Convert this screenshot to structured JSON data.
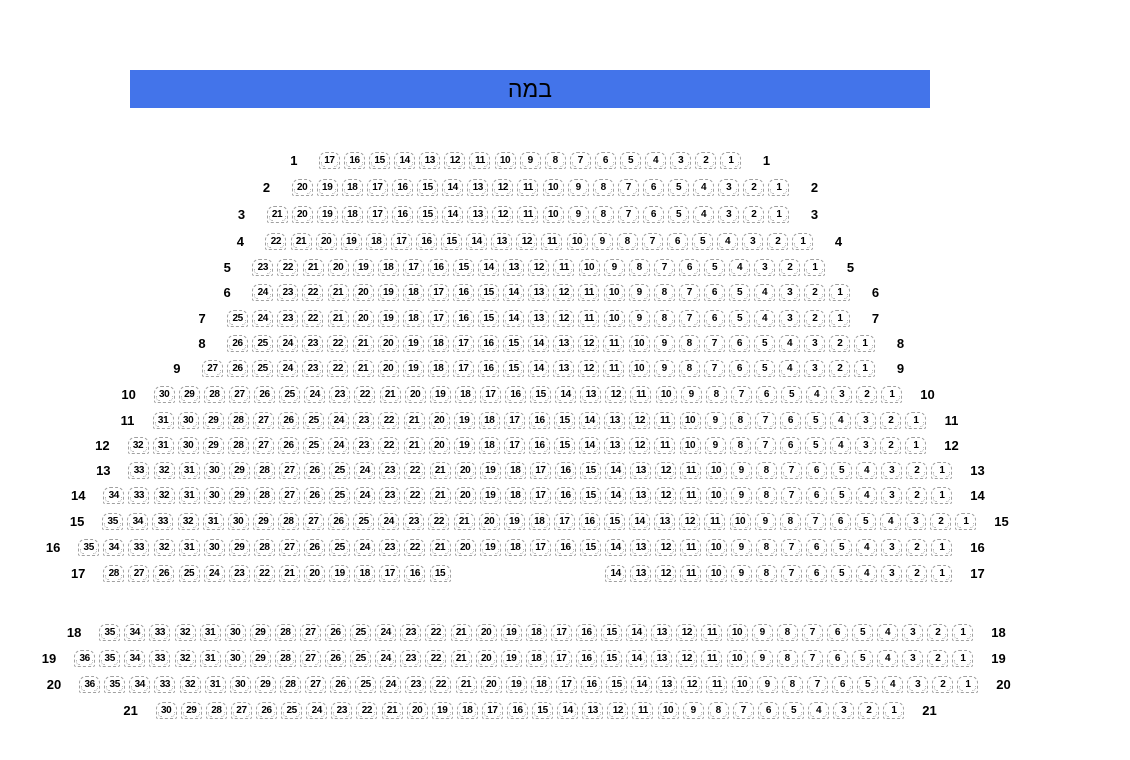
{
  "stage": {
    "label": "במה",
    "color": "#4374ea"
  },
  "seat_map": {
    "rows": [
      {
        "row": "1",
        "segments": [
          {
            "from": 17,
            "to": 1
          }
        ]
      },
      {
        "row": "2",
        "segments": [
          {
            "from": 20,
            "to": 1
          }
        ]
      },
      {
        "row": "3",
        "segments": [
          {
            "from": 21,
            "to": 1
          }
        ]
      },
      {
        "row": "4",
        "segments": [
          {
            "from": 22,
            "to": 1
          }
        ]
      },
      {
        "row": "5",
        "segments": [
          {
            "from": 23,
            "to": 1
          }
        ]
      },
      {
        "row": "6",
        "segments": [
          {
            "from": 24,
            "to": 1
          }
        ]
      },
      {
        "row": "7",
        "segments": [
          {
            "from": 25,
            "to": 1
          }
        ]
      },
      {
        "row": "8",
        "segments": [
          {
            "from": 26,
            "to": 1
          }
        ]
      },
      {
        "row": "9",
        "segments": [
          {
            "from": 27,
            "to": 1
          }
        ]
      },
      {
        "row": "10",
        "segments": [
          {
            "from": 30,
            "to": 1
          }
        ]
      },
      {
        "row": "11",
        "segments": [
          {
            "from": 31,
            "to": 1
          }
        ]
      },
      {
        "row": "12",
        "segments": [
          {
            "from": 32,
            "to": 1
          }
        ]
      },
      {
        "row": "13",
        "segments": [
          {
            "from": 33,
            "to": 1
          }
        ]
      },
      {
        "row": "14",
        "segments": [
          {
            "from": 34,
            "to": 1
          }
        ]
      },
      {
        "row": "15",
        "segments": [
          {
            "from": 35,
            "to": 1
          }
        ]
      },
      {
        "row": "16",
        "segments": [
          {
            "from": 35,
            "to": 1
          }
        ]
      },
      {
        "row": "17",
        "segments": [
          {
            "from": 28,
            "to": 15
          },
          {
            "from": 14,
            "to": 1
          }
        ]
      },
      {
        "row": "18",
        "segments": [
          {
            "from": 35,
            "to": 1
          }
        ]
      },
      {
        "row": "19",
        "segments": [
          {
            "from": 36,
            "to": 1
          }
        ]
      },
      {
        "row": "20",
        "segments": [
          {
            "from": 36,
            "to": 1
          }
        ]
      },
      {
        "row": "21",
        "segments": [
          {
            "from": 30,
            "to": 1
          }
        ]
      }
    ]
  }
}
